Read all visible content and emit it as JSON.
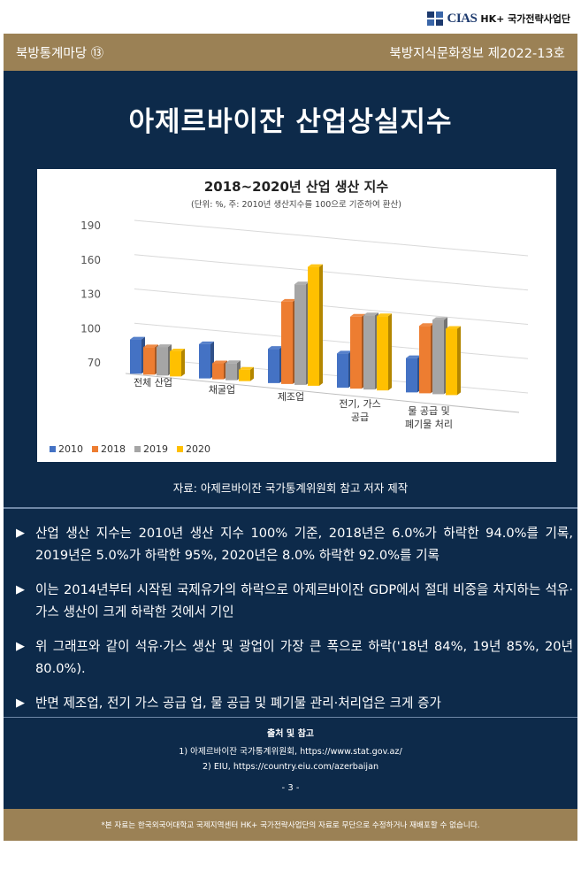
{
  "header": {
    "logo_text": "CIAS",
    "logo_subtext": "HK+ 국가전략사업단",
    "series_label": "북방통계마당 ⑬",
    "issue_label": "북방지식문화정보 제2022-13호"
  },
  "main_title": "아제르바이잔 산업상실지수",
  "chart_data": {
    "type": "bar",
    "title": "2018~2020년 산업 생산 지수",
    "subtitle": "(단위: %, 주: 2010년 생산지수를 100으로 기준하여 환산)",
    "categories": [
      "전체 산업",
      "채굴업",
      "제조업",
      "전기, 가스\n공급",
      "물 공급 및\n폐기물 처리"
    ],
    "series": [
      {
        "name": "2010",
        "color": "#4472c4",
        "values": [
          100,
          100,
          100,
          100,
          100
        ]
      },
      {
        "name": "2018",
        "color": "#ed7d31",
        "values": [
          94,
          84,
          142,
          133,
          129
        ]
      },
      {
        "name": "2019",
        "color": "#a5a5a5",
        "values": [
          95,
          85,
          158,
          135,
          135
        ]
      },
      {
        "name": "2020",
        "color": "#ffc000",
        "values": [
          92,
          80,
          174,
          135,
          128
        ]
      }
    ],
    "yticks": [
      70,
      100,
      130,
      160,
      190
    ],
    "ylim": [
      70,
      190
    ],
    "grid": true,
    "legend_position": "bottom-left"
  },
  "source_caption": "자료: 아제르바이잔 국가통계위원회 참고 저자 제작",
  "bullets": [
    "산업 생산 지수는 2010년 생산 지수 100% 기준, 2018년은 6.0%가 하락한 94.0%를 기록, 2019년은 5.0%가 하락한 95%, 2020년은 8.0% 하락한 92.0%를 기록",
    "이는 2014년부터 시작된 국제유가의 하락으로 아제르바이잔 GDP에서 절대 비중을 차지하는 석유·가스 생산이 크게 하락한 것에서 기인",
    "위 그래프와 같이 석유·가스 생산 및 광업이 가장 큰 폭으로 하락('18년 84%, 19년 85%, 20년 80.0%).",
    "반면 제조업, 전기 가스 공급 업, 물 공급 및 폐기물 관리·처리업은 크게 증가"
  ],
  "references": {
    "title": "출처 및 참고",
    "items": [
      "1) 아제르바이잔 국가통계위원회, https://www.stat.gov.az/",
      "2) EIU, https://country.eiu.com/azerbaijan"
    ]
  },
  "page_number": "- 3 -",
  "footer_notice": "*본 자료는 한국외국어대학교 국제지역센터 HK+ 국가전략사업단의 자료로 무단으로 수정하거나 재배포할 수 없습니다."
}
